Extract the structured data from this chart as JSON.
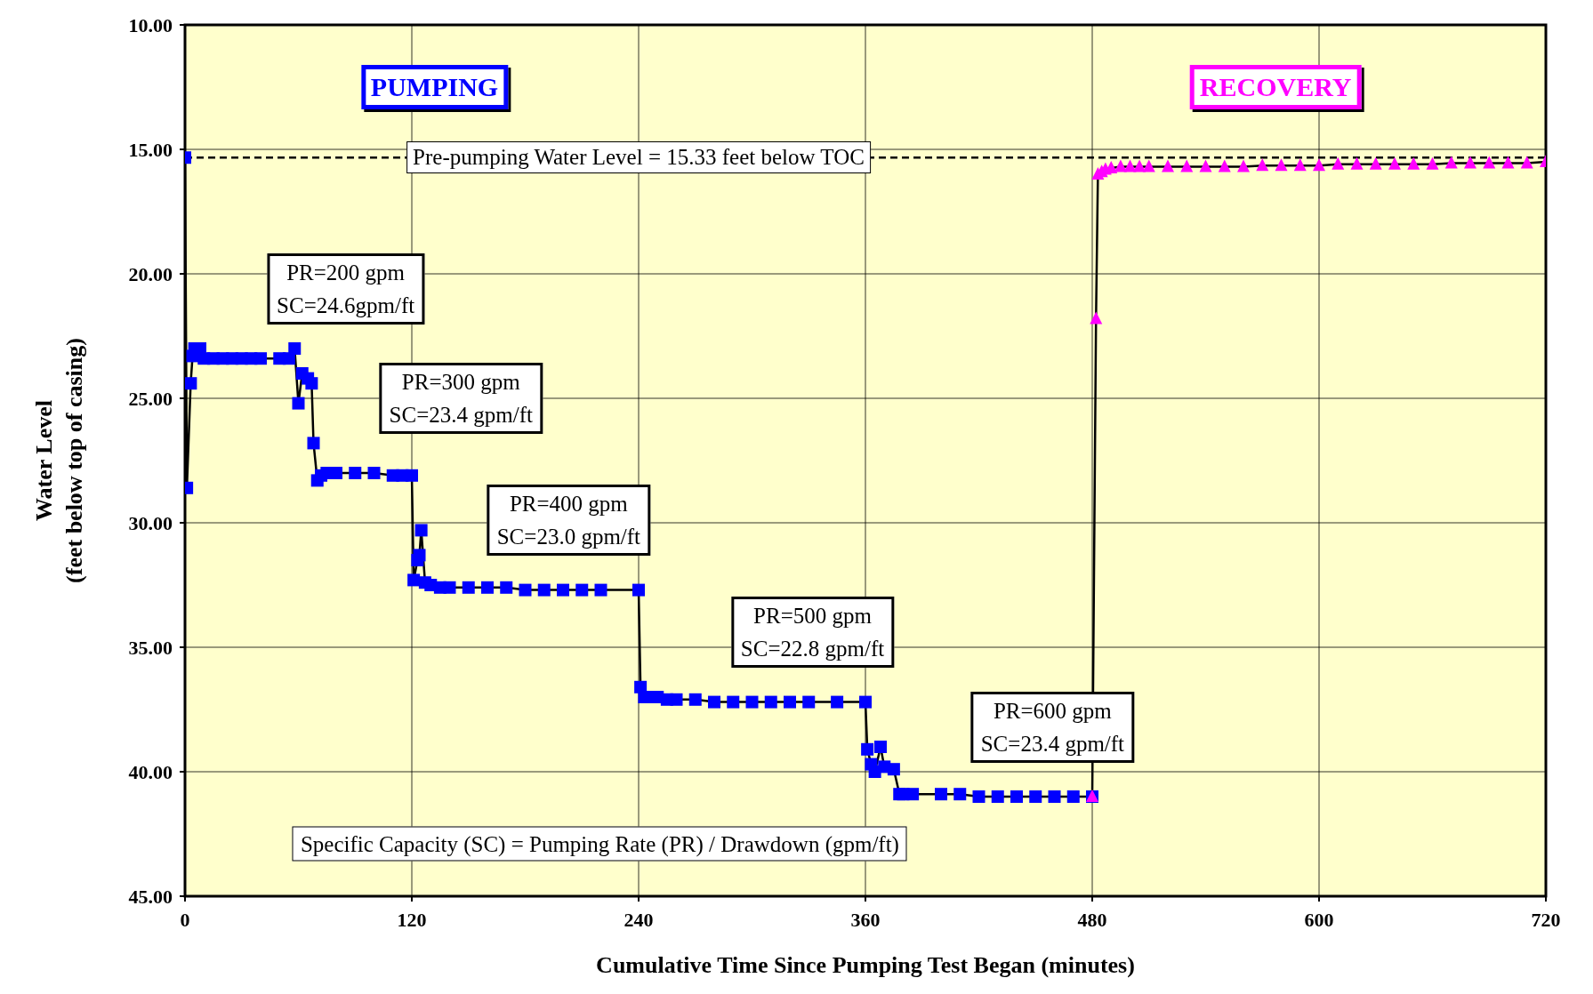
{
  "chart_data": {
    "type": "line",
    "xlabel": "Cumulative Time Since Pumping Test Began (minutes)",
    "ylabel": "Water Level\n(feet below top of casing)",
    "xlim": [
      0,
      720
    ],
    "xticks": [
      0,
      120,
      240,
      360,
      480,
      600,
      720
    ],
    "ylim": [
      45,
      10
    ],
    "yticks": [
      {
        "value": 10,
        "label": "10.00"
      },
      {
        "value": 15,
        "label": "15.00"
      },
      {
        "value": 20,
        "label": "20.00"
      },
      {
        "value": 25,
        "label": "25.00"
      },
      {
        "value": 30,
        "label": "30.00"
      },
      {
        "value": 35,
        "label": "35.00"
      },
      {
        "value": 40,
        "label": "40.00"
      },
      {
        "value": 45,
        "label": "45.00"
      }
    ],
    "grid": true,
    "series": [
      {
        "color": "#0000ff",
        "marker": "square",
        "x": [
          0,
          1,
          3,
          4,
          5,
          7,
          8,
          10,
          15,
          20,
          25,
          30,
          35,
          40,
          50,
          55,
          58,
          60,
          62,
          65,
          67,
          68,
          70,
          72,
          75,
          80,
          90,
          100,
          110,
          115,
          120,
          121,
          123,
          124,
          125,
          127,
          130,
          135,
          140,
          150,
          160,
          170,
          180,
          190,
          200,
          210,
          220,
          240,
          241,
          243,
          245,
          250,
          255,
          260,
          270,
          280,
          290,
          300,
          310,
          320,
          330,
          345,
          360,
          361,
          363,
          365,
          368,
          370,
          375,
          378,
          380,
          385,
          400,
          410,
          420,
          430,
          440,
          450,
          460,
          470,
          480
        ],
        "values": [
          15.33,
          28.6,
          24.4,
          23.3,
          23.0,
          23.2,
          23.0,
          23.4,
          23.4,
          23.4,
          23.4,
          23.4,
          23.4,
          23.4,
          23.4,
          23.4,
          23.0,
          25.2,
          24.0,
          24.2,
          24.4,
          26.8,
          28.3,
          28.1,
          28.0,
          28.0,
          28.0,
          28.0,
          28.1,
          28.1,
          28.1,
          32.3,
          31.5,
          31.3,
          30.3,
          32.4,
          32.5,
          32.6,
          32.6,
          32.6,
          32.6,
          32.6,
          32.7,
          32.7,
          32.7,
          32.7,
          32.7,
          32.7,
          36.6,
          37.0,
          37.0,
          37.0,
          37.1,
          37.1,
          37.1,
          37.2,
          37.2,
          37.2,
          37.2,
          37.2,
          37.2,
          37.2,
          37.2,
          39.1,
          39.7,
          40.0,
          39.0,
          39.8,
          39.9,
          40.9,
          40.9,
          40.9,
          40.9,
          40.9,
          41.0,
          41.0,
          41.0,
          41.0,
          41.0,
          41.0,
          41.0
        ]
      },
      {
        "color": "#ff00ff",
        "marker": "triangle",
        "x": [
          480,
          482,
          483,
          485,
          487,
          490,
          495,
          500,
          505,
          510,
          520,
          530,
          540,
          550,
          560,
          570,
          580,
          590,
          600,
          610,
          620,
          630,
          640,
          650,
          660,
          670,
          680,
          690,
          700,
          710,
          720
        ],
        "values": [
          41.0,
          21.8,
          16.0,
          15.9,
          15.8,
          15.75,
          15.7,
          15.7,
          15.7,
          15.7,
          15.7,
          15.7,
          15.7,
          15.7,
          15.7,
          15.65,
          15.65,
          15.65,
          15.65,
          15.6,
          15.6,
          15.6,
          15.6,
          15.6,
          15.6,
          15.55,
          15.55,
          15.55,
          15.55,
          15.55,
          15.5
        ]
      }
    ],
    "ref_lines": [
      {
        "axis": "y",
        "value": 15.33,
        "label": "Pre-pumping Water Level = 15.33  feet below TOC",
        "line_style": "dashed",
        "color": "#000000"
      }
    ],
    "annotations": [
      "PUMPING",
      "RECOVERY",
      "PR=200 gpm\nSC=24.6gpm/ft",
      "PR=300 gpm\nSC=23.4 gpm/ft",
      "PR=400 gpm\nSC=23.0 gpm/ft",
      "PR=500 gpm\nSC=22.8 gpm/ft",
      "PR=600 gpm\nSC=23.4 gpm/ft",
      "Specific Capacity (SC) = Pumping Rate (PR) / Drawdown (gpm/ft)"
    ]
  }
}
